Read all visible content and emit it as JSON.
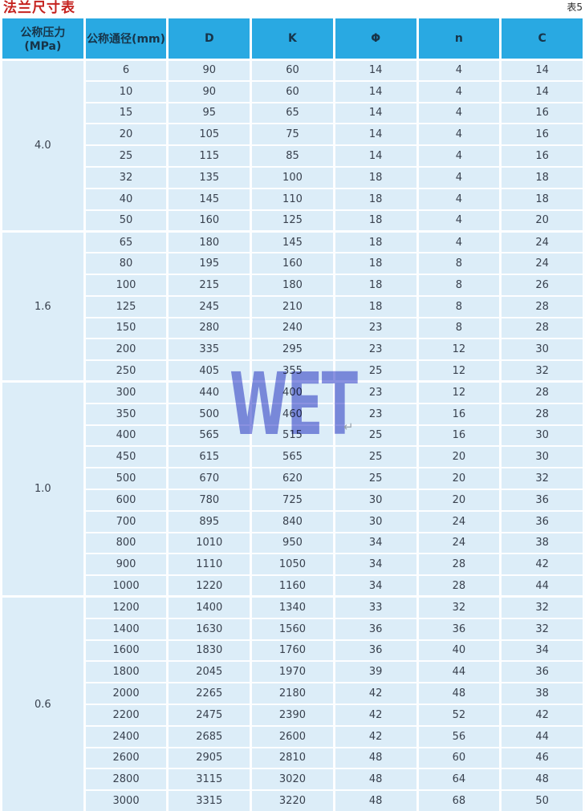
{
  "page": {
    "title": "法兰尺寸表",
    "corner_note": "表5"
  },
  "watermark": {
    "text": "WET",
    "arrow": "↵",
    "color": "#8b92e0"
  },
  "colors": {
    "header_bg": "#29a9e2",
    "cell_bg": "#dcedf8",
    "title_red": "#c5231f",
    "separator": "#fdfeff"
  },
  "chart_data": {
    "type": "table",
    "title": "法兰尺寸表",
    "note": "表5",
    "headers": [
      "公称压力(MPa)",
      "公称通径(mm)",
      "D",
      "K",
      "Φ",
      "n",
      "C"
    ],
    "groups": [
      {
        "pressure": "4.0",
        "rows": [
          [
            6,
            90,
            60,
            14,
            4,
            14
          ],
          [
            10,
            90,
            60,
            14,
            4,
            14
          ],
          [
            15,
            95,
            65,
            14,
            4,
            16
          ],
          [
            20,
            105,
            75,
            14,
            4,
            16
          ],
          [
            25,
            115,
            85,
            14,
            4,
            16
          ],
          [
            32,
            135,
            100,
            18,
            4,
            18
          ],
          [
            40,
            145,
            110,
            18,
            4,
            18
          ],
          [
            50,
            160,
            125,
            18,
            4,
            20
          ]
        ]
      },
      {
        "pressure": "1.6",
        "rows": [
          [
            65,
            180,
            145,
            18,
            4,
            24
          ],
          [
            80,
            195,
            160,
            18,
            8,
            24
          ],
          [
            100,
            215,
            180,
            18,
            8,
            26
          ],
          [
            125,
            245,
            210,
            18,
            8,
            28
          ],
          [
            150,
            280,
            240,
            23,
            8,
            28
          ],
          [
            200,
            335,
            295,
            23,
            12,
            30
          ],
          [
            250,
            405,
            355,
            25,
            12,
            32
          ]
        ]
      },
      {
        "pressure": "1.0",
        "rows": [
          [
            300,
            440,
            400,
            23,
            12,
            28
          ],
          [
            350,
            500,
            460,
            23,
            16,
            28
          ],
          [
            400,
            565,
            515,
            25,
            16,
            30
          ],
          [
            450,
            615,
            565,
            25,
            20,
            30
          ],
          [
            500,
            670,
            620,
            25,
            20,
            32
          ],
          [
            600,
            780,
            725,
            30,
            20,
            36
          ],
          [
            700,
            895,
            840,
            30,
            24,
            36
          ],
          [
            800,
            1010,
            950,
            34,
            24,
            38
          ],
          [
            900,
            1110,
            1050,
            34,
            28,
            42
          ],
          [
            1000,
            1220,
            1160,
            34,
            28,
            44
          ]
        ]
      },
      {
        "pressure": "0.6",
        "rows": [
          [
            1200,
            1400,
            1340,
            33,
            32,
            32
          ],
          [
            1400,
            1630,
            1560,
            36,
            36,
            32
          ],
          [
            1600,
            1830,
            1760,
            36,
            40,
            34
          ],
          [
            1800,
            2045,
            1970,
            39,
            44,
            36
          ],
          [
            2000,
            2265,
            2180,
            42,
            48,
            38
          ],
          [
            2200,
            2475,
            2390,
            42,
            52,
            42
          ],
          [
            2400,
            2685,
            2600,
            42,
            56,
            44
          ],
          [
            2600,
            2905,
            2810,
            48,
            60,
            46
          ],
          [
            2800,
            3115,
            3020,
            48,
            64,
            48
          ],
          [
            3000,
            3315,
            3220,
            48,
            68,
            50
          ]
        ]
      }
    ]
  }
}
